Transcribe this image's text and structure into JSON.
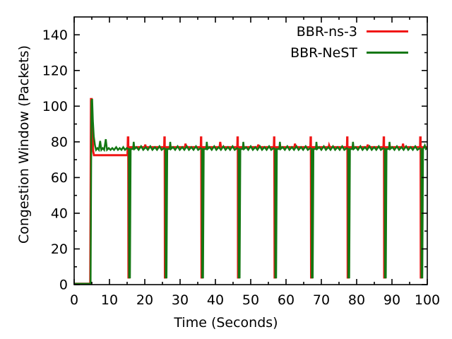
{
  "chart_data": {
    "type": "line",
    "title": "",
    "xlabel": "Time (Seconds)",
    "ylabel": "Congestion Window (Packets)",
    "xlim": [
      0,
      100
    ],
    "ylim": [
      0,
      150
    ],
    "xticks": [
      0,
      10,
      20,
      30,
      40,
      50,
      60,
      70,
      80,
      90,
      100
    ],
    "yticks": [
      0,
      20,
      40,
      60,
      80,
      100,
      120,
      140
    ],
    "x_minor_ticks": [
      5,
      15,
      25,
      35,
      45,
      55,
      65,
      75,
      85,
      95
    ],
    "y_minor_ticks": [
      10,
      30,
      50,
      70,
      90,
      110,
      130
    ],
    "grid": false,
    "legend_position": "top-right-inside",
    "frame_color": "#000000",
    "series": [
      {
        "name": "BBR-ns-3",
        "color": "#f01515",
        "width": 3,
        "points": [
          [
            0,
            0.5
          ],
          [
            4.55,
            0.5
          ],
          [
            4.75,
            104
          ],
          [
            4.95,
            104
          ],
          [
            5.15,
            86
          ],
          [
            5.35,
            75
          ],
          [
            5.6,
            72.5
          ],
          [
            15.1,
            72.5
          ],
          [
            15.22,
            82.5
          ],
          [
            15.32,
            82.5
          ],
          [
            15.38,
            4
          ],
          [
            15.6,
            4
          ],
          [
            15.78,
            77
          ],
          [
            20,
            77
          ],
          [
            20.12,
            78.5
          ],
          [
            20.3,
            77
          ],
          [
            25.5,
            77
          ],
          [
            25.56,
            82.5
          ],
          [
            25.64,
            82.5
          ],
          [
            25.7,
            4
          ],
          [
            25.95,
            4
          ],
          [
            26.12,
            77
          ],
          [
            31.4,
            77
          ],
          [
            31.52,
            79
          ],
          [
            31.7,
            77
          ],
          [
            35.85,
            77
          ],
          [
            35.91,
            82.5
          ],
          [
            35.99,
            82.5
          ],
          [
            36.05,
            4
          ],
          [
            36.3,
            4
          ],
          [
            36.48,
            77
          ],
          [
            41.2,
            77
          ],
          [
            41.35,
            80
          ],
          [
            41.55,
            77
          ],
          [
            46.2,
            77
          ],
          [
            46.26,
            82.5
          ],
          [
            46.34,
            82.5
          ],
          [
            46.4,
            4
          ],
          [
            46.65,
            4
          ],
          [
            46.82,
            77
          ],
          [
            52,
            77
          ],
          [
            52.12,
            78.5
          ],
          [
            52.3,
            77
          ],
          [
            56.55,
            77
          ],
          [
            56.61,
            82.5
          ],
          [
            56.69,
            82.5
          ],
          [
            56.75,
            4
          ],
          [
            57.0,
            4
          ],
          [
            57.18,
            77
          ],
          [
            62.4,
            77
          ],
          [
            62.52,
            79
          ],
          [
            62.7,
            77
          ],
          [
            66.9,
            77
          ],
          [
            66.96,
            82.5
          ],
          [
            67.04,
            82.5
          ],
          [
            67.1,
            4
          ],
          [
            67.35,
            4
          ],
          [
            67.52,
            77
          ],
          [
            72.1,
            77
          ],
          [
            72.2,
            78
          ],
          [
            72.38,
            77
          ],
          [
            77.25,
            77
          ],
          [
            77.31,
            82.5
          ],
          [
            77.39,
            82.5
          ],
          [
            77.45,
            4
          ],
          [
            77.7,
            4
          ],
          [
            77.88,
            77
          ],
          [
            83,
            77
          ],
          [
            83.12,
            78.5
          ],
          [
            83.3,
            77
          ],
          [
            87.6,
            77
          ],
          [
            87.66,
            82.5
          ],
          [
            87.74,
            82.5
          ],
          [
            87.8,
            4
          ],
          [
            88.05,
            4
          ],
          [
            88.22,
            77
          ],
          [
            93,
            77
          ],
          [
            93.12,
            79
          ],
          [
            93.3,
            77
          ],
          [
            97.95,
            77
          ],
          [
            98.01,
            82.5
          ],
          [
            98.09,
            82.5
          ],
          [
            98.15,
            4
          ],
          [
            98.4,
            4
          ],
          [
            98.58,
            77
          ],
          [
            100,
            77
          ]
        ]
      },
      {
        "name": "BBR-NeST",
        "color": "#137813",
        "width": 2.5,
        "points": [
          [
            0,
            0.5
          ],
          [
            4.65,
            0.5
          ],
          [
            4.9,
            103
          ],
          [
            5.1,
            104
          ],
          [
            5.3,
            92
          ],
          [
            5.55,
            83
          ],
          [
            5.9,
            78
          ],
          [
            6.2,
            75.5
          ],
          [
            6.6,
            76.5
          ],
          [
            7.0,
            75.5
          ],
          [
            7.35,
            80.5
          ],
          [
            7.7,
            75.5
          ],
          [
            8.1,
            76.5
          ],
          [
            8.5,
            75.5
          ],
          [
            8.95,
            81.5
          ],
          [
            9.3,
            75.5
          ],
          [
            9.8,
            76.5
          ],
          [
            10.3,
            75.5
          ],
          [
            10.8,
            76.5
          ],
          [
            11.3,
            75.5
          ],
          [
            11.9,
            77
          ],
          [
            12.4,
            75.5
          ],
          [
            12.9,
            76.5
          ],
          [
            13.4,
            75.5
          ],
          [
            13.9,
            77
          ],
          [
            14.4,
            75.5
          ],
          [
            14.9,
            76.5
          ],
          [
            15.35,
            76
          ],
          [
            15.5,
            76
          ],
          [
            15.55,
            4
          ],
          [
            15.8,
            4
          ],
          [
            16.0,
            76
          ],
          [
            16.7,
            76
          ],
          [
            16.85,
            80
          ],
          [
            17.05,
            76
          ],
          [
            17.65,
            77
          ],
          [
            18.25,
            75.5
          ],
          [
            18.95,
            77.5
          ],
          [
            19.55,
            75.5
          ],
          [
            20.25,
            77
          ],
          [
            20.85,
            75.5
          ],
          [
            21.55,
            77.5
          ],
          [
            22.15,
            75.5
          ],
          [
            22.85,
            77
          ],
          [
            23.45,
            75.5
          ],
          [
            24.15,
            77.5
          ],
          [
            24.75,
            75.5
          ],
          [
            25.45,
            76.5
          ],
          [
            25.85,
            76
          ],
          [
            25.9,
            4
          ],
          [
            26.15,
            4
          ],
          [
            26.35,
            76
          ],
          [
            27.05,
            76
          ],
          [
            27.2,
            80
          ],
          [
            27.4,
            76
          ],
          [
            28.0,
            77
          ],
          [
            28.6,
            75.5
          ],
          [
            29.3,
            77.5
          ],
          [
            29.9,
            75.5
          ],
          [
            30.6,
            77
          ],
          [
            31.2,
            75.5
          ],
          [
            31.9,
            77.5
          ],
          [
            32.5,
            75.5
          ],
          [
            33.2,
            77
          ],
          [
            33.8,
            75.5
          ],
          [
            34.5,
            77.5
          ],
          [
            35.1,
            75.5
          ],
          [
            35.8,
            76.5
          ],
          [
            36.2,
            76
          ],
          [
            36.25,
            4
          ],
          [
            36.5,
            4
          ],
          [
            36.7,
            76
          ],
          [
            37.4,
            76
          ],
          [
            37.55,
            80
          ],
          [
            37.75,
            76
          ],
          [
            38.35,
            77
          ],
          [
            38.95,
            75.5
          ],
          [
            39.65,
            77.5
          ],
          [
            40.25,
            75.5
          ],
          [
            40.95,
            77
          ],
          [
            41.55,
            75.5
          ],
          [
            42.25,
            77.5
          ],
          [
            42.85,
            75.5
          ],
          [
            43.55,
            77
          ],
          [
            44.15,
            75.5
          ],
          [
            44.85,
            77.5
          ],
          [
            45.45,
            75.5
          ],
          [
            46.15,
            76.5
          ],
          [
            46.55,
            76
          ],
          [
            46.6,
            4
          ],
          [
            46.85,
            4
          ],
          [
            47.05,
            76
          ],
          [
            47.75,
            76
          ],
          [
            47.9,
            80
          ],
          [
            48.1,
            76
          ],
          [
            48.7,
            77
          ],
          [
            49.3,
            75.5
          ],
          [
            50.0,
            77.5
          ],
          [
            50.6,
            75.5
          ],
          [
            51.3,
            77
          ],
          [
            51.9,
            75.5
          ],
          [
            52.6,
            77.5
          ],
          [
            53.2,
            75.5
          ],
          [
            53.9,
            77
          ],
          [
            54.5,
            75.5
          ],
          [
            55.2,
            77.5
          ],
          [
            55.8,
            75.5
          ],
          [
            56.5,
            76.5
          ],
          [
            56.9,
            76
          ],
          [
            56.95,
            4
          ],
          [
            57.2,
            4
          ],
          [
            57.4,
            76
          ],
          [
            58.1,
            76
          ],
          [
            58.25,
            80
          ],
          [
            58.45,
            76
          ],
          [
            59.05,
            77
          ],
          [
            59.65,
            75.5
          ],
          [
            60.35,
            77.5
          ],
          [
            60.95,
            75.5
          ],
          [
            61.65,
            77
          ],
          [
            62.25,
            75.5
          ],
          [
            62.95,
            77.5
          ],
          [
            63.55,
            75.5
          ],
          [
            64.25,
            77
          ],
          [
            64.85,
            75.5
          ],
          [
            65.55,
            77.5
          ],
          [
            66.15,
            75.5
          ],
          [
            66.85,
            76.5
          ],
          [
            67.25,
            76
          ],
          [
            67.3,
            4
          ],
          [
            67.55,
            4
          ],
          [
            67.75,
            76
          ],
          [
            68.45,
            76
          ],
          [
            68.6,
            80
          ],
          [
            68.8,
            76
          ],
          [
            69.4,
            77
          ],
          [
            70.0,
            75.5
          ],
          [
            70.7,
            77.5
          ],
          [
            71.3,
            75.5
          ],
          [
            72.0,
            77
          ],
          [
            72.6,
            75.5
          ],
          [
            73.3,
            77.5
          ],
          [
            73.9,
            75.5
          ],
          [
            74.6,
            77
          ],
          [
            75.2,
            75.5
          ],
          [
            75.9,
            77.5
          ],
          [
            76.5,
            75.5
          ],
          [
            77.2,
            76.5
          ],
          [
            77.6,
            76
          ],
          [
            77.65,
            4
          ],
          [
            77.9,
            4
          ],
          [
            78.1,
            76
          ],
          [
            78.8,
            76
          ],
          [
            78.95,
            80
          ],
          [
            79.15,
            76
          ],
          [
            79.75,
            77
          ],
          [
            80.35,
            75.5
          ],
          [
            81.05,
            77.5
          ],
          [
            81.65,
            75.5
          ],
          [
            82.35,
            77
          ],
          [
            82.95,
            75.5
          ],
          [
            83.65,
            77.5
          ],
          [
            84.25,
            75.5
          ],
          [
            84.95,
            77
          ],
          [
            85.55,
            75.5
          ],
          [
            86.25,
            77.5
          ],
          [
            86.85,
            75.5
          ],
          [
            87.55,
            76.5
          ],
          [
            87.95,
            76
          ],
          [
            88.0,
            4
          ],
          [
            88.25,
            4
          ],
          [
            88.45,
            76
          ],
          [
            89.15,
            76
          ],
          [
            89.3,
            80
          ],
          [
            89.5,
            76
          ],
          [
            90.1,
            77
          ],
          [
            90.7,
            75.5
          ],
          [
            91.4,
            77.5
          ],
          [
            92.0,
            75.5
          ],
          [
            92.7,
            77
          ],
          [
            93.3,
            75.5
          ],
          [
            94.0,
            77.5
          ],
          [
            94.6,
            75.5
          ],
          [
            95.3,
            77
          ],
          [
            95.9,
            75.5
          ],
          [
            96.6,
            77.5
          ],
          [
            97.2,
            75.5
          ],
          [
            97.9,
            76.5
          ],
          [
            98.3,
            76
          ],
          [
            98.35,
            4
          ],
          [
            98.6,
            4
          ],
          [
            98.8,
            76
          ],
          [
            99.3,
            78
          ],
          [
            99.6,
            76
          ],
          [
            100,
            76.5
          ]
        ]
      }
    ]
  },
  "legend": {
    "items": [
      {
        "label": "BBR-ns-3"
      },
      {
        "label": "BBR-NeST"
      }
    ]
  },
  "axes": {
    "x_title": "Time (Seconds)",
    "y_title": "Congestion Window (Packets)"
  }
}
